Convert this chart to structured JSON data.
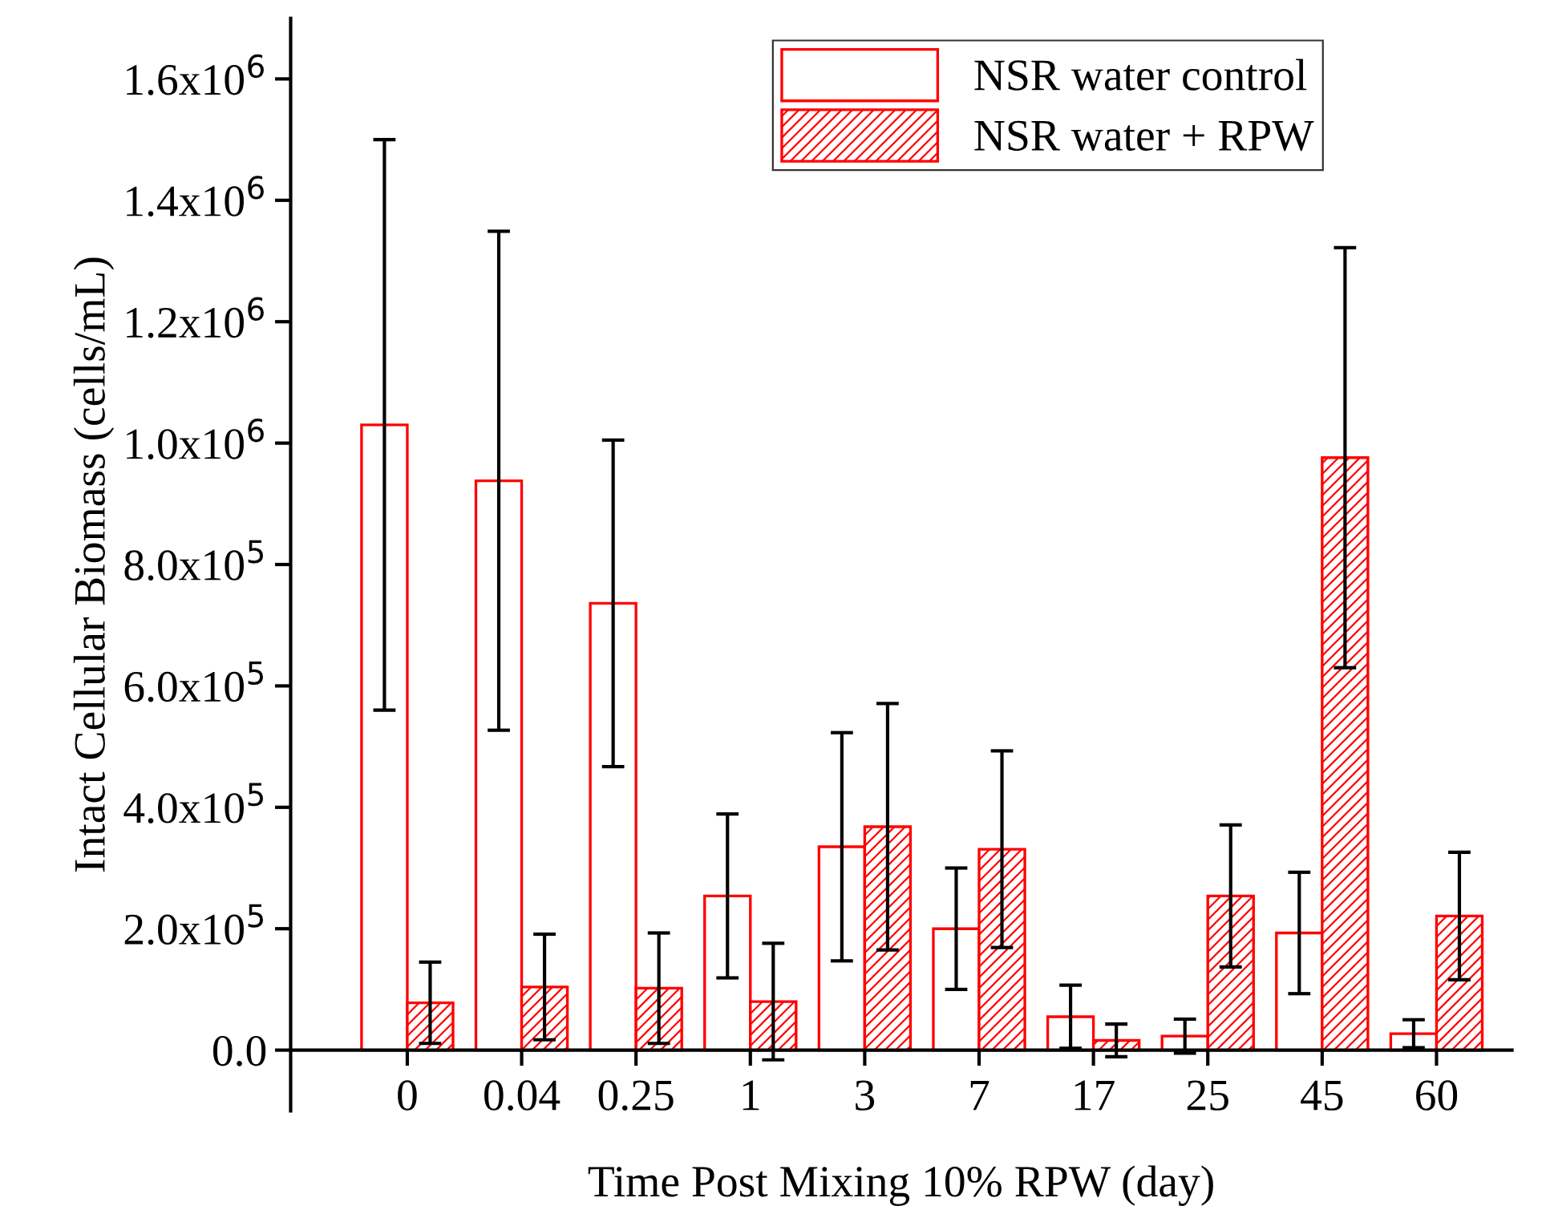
{
  "chart_data": {
    "type": "bar",
    "xlabel": "Time Post Mixing 10% RPW (day)",
    "ylabel": "Intact Cellular Biomass (cells/mL)",
    "categories": [
      "0",
      "0.04",
      "0.25",
      "1",
      "3",
      "7",
      "17",
      "25",
      "45",
      "60"
    ],
    "series": [
      {
        "name": "NSR water control",
        "color": "#ff0000",
        "values": [
          1030000,
          938000,
          736000,
          254000,
          335000,
          200000,
          55000,
          23000,
          193000,
          27000
        ],
        "errors": [
          470000,
          411000,
          269000,
          135000,
          188000,
          100000,
          52000,
          28000,
          100000,
          23000
        ]
      },
      {
        "name": "NSR water + RPW",
        "color": "#ff0000",
        "values": [
          78000,
          104000,
          102000,
          80000,
          368000,
          331000,
          16000,
          254000,
          976000,
          221000
        ],
        "errors": [
          67000,
          87000,
          91000,
          96000,
          203000,
          162000,
          27000,
          117000,
          346000,
          105000
        ]
      }
    ],
    "ylim": [
      -100000,
      1700000
    ],
    "yticks": [
      {
        "value": 0,
        "label": "0.0"
      },
      {
        "value": 200000,
        "label": "2.0x10$^{5}$"
      },
      {
        "value": 400000,
        "label": "4.0x10$^{5}$"
      },
      {
        "value": 600000,
        "label": "6.0x10$^{5}$"
      },
      {
        "value": 800000,
        "label": "8.0x10$^{5}$"
      },
      {
        "value": 1000000,
        "label": "1.0x10$^{6}$"
      },
      {
        "value": 1200000,
        "label": "1.2x10$^{6}$"
      },
      {
        "value": 1400000,
        "label": "1.4x10$^{6}$"
      },
      {
        "value": 1600000,
        "label": "1.6x10$^{6}$"
      }
    ],
    "legend": "top",
    "grid": false
  }
}
